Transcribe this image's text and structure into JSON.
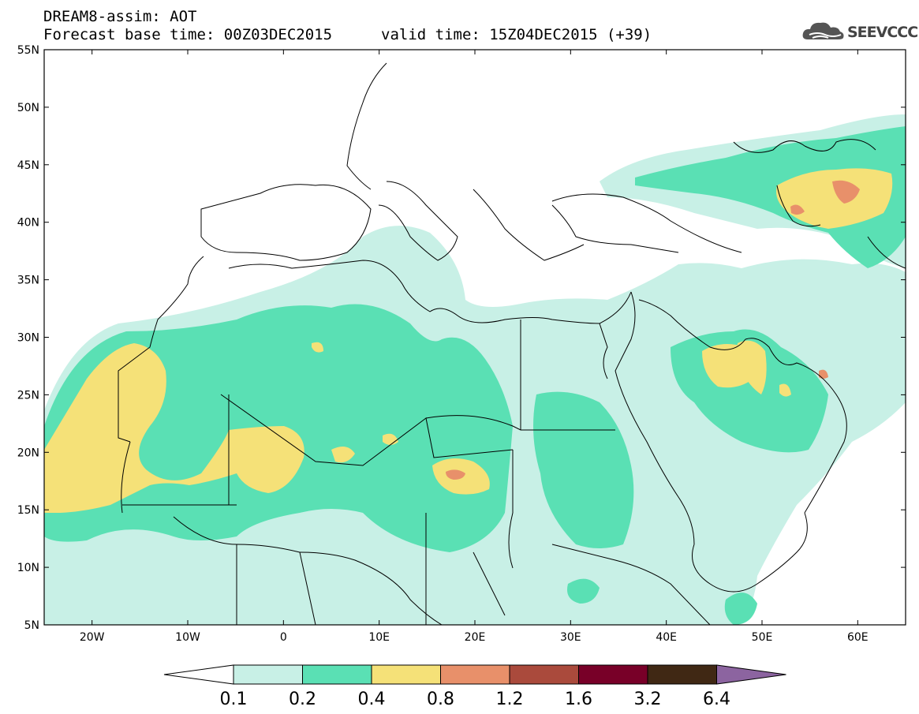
{
  "header": {
    "model_title": "DREAM8-assim: AOT",
    "base_time": "Forecast base time: 00Z03DEC2015",
    "valid_time": "valid time: 15Z04DEC2015 (+39)",
    "logo_text": "SEEVCCC"
  },
  "map": {
    "projection": "lat-lon",
    "lon_range": [
      -25,
      65
    ],
    "lat_range": [
      5,
      55
    ],
    "lat_labels": [
      "55N",
      "50N",
      "45N",
      "40N",
      "35N",
      "30N",
      "25N",
      "20N",
      "15N",
      "10N",
      "5N"
    ],
    "lon_labels": [
      "20W",
      "10W",
      "0",
      "10E",
      "20E",
      "30E",
      "40E",
      "50E",
      "60E"
    ],
    "field": "Aerosol Optical Thickness"
  },
  "colorbar": {
    "levels": [
      "0.1",
      "0.2",
      "0.4",
      "0.8",
      "1.2",
      "1.6",
      "3.2",
      "6.4"
    ],
    "colors": {
      "lt0_1": "#ffffff",
      "c1": "#c8f0e6",
      "c2": "#5ae0b4",
      "c3": "#f5e178",
      "c4": "#e8906a",
      "c5": "#aa4a3c",
      "c6": "#780028",
      "c7": "#402814",
      "c8": "#8c64a0"
    }
  }
}
